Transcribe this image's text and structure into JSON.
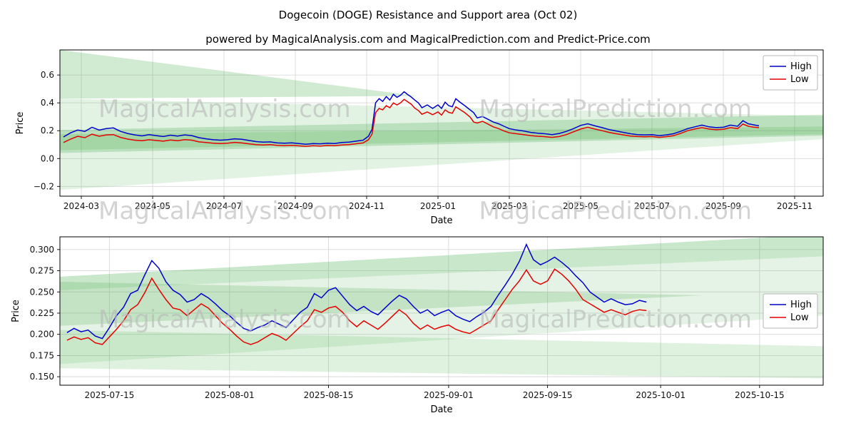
{
  "figure": {
    "title": "Dogecoin (DOGE) Resistance and Support area (Oct 02)",
    "subtitle": "powered by MagicalAnalysis.com and MagicalPrediction.com and Predict-Price.com"
  },
  "watermark": {
    "left": "MagicalAnalysis.com",
    "right": "MagicalPrediction.com"
  },
  "colors": {
    "high": "#0000cc",
    "low": "#e60000",
    "band": "#4caf50",
    "grid": "#d9d9d9"
  },
  "chart_data": [
    {
      "type": "line",
      "xlabel": "Date",
      "ylabel": "Price",
      "x_unit": "months since 2024-01 (3 = 2024-03)",
      "xlim": [
        2.4,
        23.8
      ],
      "ylim": [
        -0.27,
        0.78
      ],
      "grid": true,
      "legend": {
        "loc": "ne"
      },
      "xticks": [
        {
          "v": 3,
          "label": "2024-03"
        },
        {
          "v": 5,
          "label": "2024-05"
        },
        {
          "v": 7,
          "label": "2024-07"
        },
        {
          "v": 9,
          "label": "2024-09"
        },
        {
          "v": 11,
          "label": "2024-11"
        },
        {
          "v": 13,
          "label": "2025-01"
        },
        {
          "v": 15,
          "label": "2025-03"
        },
        {
          "v": 17,
          "label": "2025-05"
        },
        {
          "v": 19,
          "label": "2025-07"
        },
        {
          "v": 21,
          "label": "2025-09"
        },
        {
          "v": 23,
          "label": "2025-11"
        }
      ],
      "yticks": [
        {
          "v": -0.2,
          "label": "−0.2"
        },
        {
          "v": 0.0,
          "label": "0.0"
        },
        {
          "v": 0.2,
          "label": "0.2"
        },
        {
          "v": 0.4,
          "label": "0.4"
        },
        {
          "v": 0.6,
          "label": "0.6"
        }
      ],
      "x": [
        2.5,
        2.7,
        2.9,
        3.1,
        3.3,
        3.5,
        3.7,
        3.9,
        4.1,
        4.3,
        4.5,
        4.7,
        4.9,
        5.1,
        5.3,
        5.5,
        5.7,
        5.9,
        6.1,
        6.3,
        6.5,
        6.7,
        6.9,
        7.1,
        7.3,
        7.5,
        7.7,
        7.9,
        8.1,
        8.3,
        8.5,
        8.7,
        8.9,
        9.1,
        9.3,
        9.5,
        9.7,
        9.9,
        10.1,
        10.3,
        10.5,
        10.7,
        10.9,
        11.05,
        11.15,
        11.25,
        11.35,
        11.45,
        11.55,
        11.65,
        11.75,
        11.85,
        11.95,
        12.05,
        12.15,
        12.25,
        12.35,
        12.45,
        12.55,
        12.7,
        12.85,
        13.0,
        13.1,
        13.2,
        13.3,
        13.4,
        13.5,
        13.6,
        13.75,
        13.9,
        14.0,
        14.1,
        14.25,
        14.4,
        14.55,
        14.7,
        14.85,
        15.0,
        15.2,
        15.4,
        15.6,
        15.8,
        16.0,
        16.2,
        16.4,
        16.6,
        16.8,
        17.0,
        17.2,
        17.4,
        17.6,
        17.8,
        18.0,
        18.2,
        18.4,
        18.6,
        18.8,
        19.0,
        19.2,
        19.4,
        19.6,
        19.8,
        20.0,
        20.2,
        20.4,
        20.6,
        20.8,
        21.0,
        21.2,
        21.4,
        21.55,
        21.7,
        21.85,
        22.0
      ],
      "series": [
        {
          "name": "High",
          "color": "#0000cc",
          "values": [
            0.155,
            0.185,
            0.205,
            0.195,
            0.225,
            0.205,
            0.215,
            0.22,
            0.195,
            0.18,
            0.17,
            0.163,
            0.172,
            0.165,
            0.158,
            0.168,
            0.162,
            0.17,
            0.165,
            0.15,
            0.142,
            0.135,
            0.132,
            0.135,
            0.142,
            0.138,
            0.13,
            0.122,
            0.118,
            0.12,
            0.112,
            0.11,
            0.113,
            0.108,
            0.103,
            0.108,
            0.106,
            0.11,
            0.108,
            0.115,
            0.118,
            0.125,
            0.132,
            0.16,
            0.21,
            0.4,
            0.43,
            0.41,
            0.445,
            0.42,
            0.462,
            0.44,
            0.455,
            0.48,
            0.46,
            0.442,
            0.42,
            0.4,
            0.365,
            0.385,
            0.36,
            0.385,
            0.36,
            0.405,
            0.38,
            0.372,
            0.43,
            0.408,
            0.38,
            0.35,
            0.33,
            0.292,
            0.302,
            0.282,
            0.262,
            0.25,
            0.232,
            0.215,
            0.205,
            0.198,
            0.188,
            0.182,
            0.178,
            0.172,
            0.18,
            0.195,
            0.215,
            0.238,
            0.25,
            0.235,
            0.222,
            0.208,
            0.198,
            0.188,
            0.178,
            0.172,
            0.17,
            0.172,
            0.165,
            0.17,
            0.178,
            0.195,
            0.215,
            0.228,
            0.24,
            0.228,
            0.222,
            0.225,
            0.24,
            0.232,
            0.272,
            0.25,
            0.242,
            0.235
          ]
        },
        {
          "name": "Low",
          "color": "#e60000",
          "values": [
            0.115,
            0.14,
            0.16,
            0.15,
            0.175,
            0.16,
            0.17,
            0.172,
            0.152,
            0.14,
            0.132,
            0.128,
            0.135,
            0.13,
            0.125,
            0.133,
            0.128,
            0.136,
            0.132,
            0.12,
            0.115,
            0.11,
            0.108,
            0.11,
            0.116,
            0.112,
            0.106,
            0.1,
            0.097,
            0.1,
            0.094,
            0.092,
            0.095,
            0.091,
            0.088,
            0.092,
            0.09,
            0.094,
            0.092,
            0.098,
            0.1,
            0.106,
            0.112,
            0.135,
            0.175,
            0.33,
            0.36,
            0.35,
            0.38,
            0.365,
            0.4,
            0.385,
            0.4,
            0.425,
            0.408,
            0.39,
            0.362,
            0.345,
            0.318,
            0.335,
            0.315,
            0.335,
            0.312,
            0.35,
            0.332,
            0.325,
            0.372,
            0.355,
            0.33,
            0.298,
            0.262,
            0.255,
            0.268,
            0.248,
            0.228,
            0.215,
            0.198,
            0.185,
            0.178,
            0.172,
            0.165,
            0.16,
            0.157,
            0.152,
            0.158,
            0.172,
            0.192,
            0.212,
            0.225,
            0.212,
            0.2,
            0.188,
            0.178,
            0.17,
            0.162,
            0.158,
            0.156,
            0.158,
            0.152,
            0.157,
            0.164,
            0.18,
            0.2,
            0.212,
            0.222,
            0.212,
            0.207,
            0.21,
            0.222,
            0.215,
            0.248,
            0.232,
            0.226,
            0.222
          ]
        }
      ],
      "bands": [
        {
          "color": "#4caf50",
          "opacity": 0.26,
          "points": [
            [
              2.4,
              0.78
            ],
            [
              12.4,
              0.45
            ],
            [
              2.4,
              0.43
            ]
          ]
        },
        {
          "color": "#4caf50",
          "opacity": 0.16,
          "points": [
            [
              2.4,
              0.43
            ],
            [
              23.8,
              0.305
            ],
            [
              23.8,
              0.14
            ],
            [
              2.4,
              -0.225
            ]
          ]
        },
        {
          "color": "#4caf50",
          "opacity": 0.26,
          "points": [
            [
              2.4,
              0.205
            ],
            [
              23.8,
              0.315
            ],
            [
              23.8,
              0.165
            ],
            [
              2.4,
              0.04
            ]
          ]
        },
        {
          "color": "#4caf50",
          "opacity": 0.22,
          "points": [
            [
              2.4,
              0.175
            ],
            [
              23.8,
              0.23
            ],
            [
              23.8,
              0.175
            ],
            [
              2.4,
              0.06
            ]
          ]
        }
      ]
    },
    {
      "type": "line",
      "xlabel": "Date",
      "ylabel": "Price",
      "x_unit": "days since 2025-07-01 (14 = 2025-07-15)",
      "xlim": [
        7,
        115
      ],
      "ylim": [
        0.14,
        0.315
      ],
      "grid": true,
      "legend": {
        "loc": "e"
      },
      "xticks": [
        {
          "v": 14,
          "label": "2025-07-15"
        },
        {
          "v": 31,
          "label": "2025-08-01"
        },
        {
          "v": 45,
          "label": "2025-08-15"
        },
        {
          "v": 62,
          "label": "2025-09-01"
        },
        {
          "v": 76,
          "label": "2025-09-15"
        },
        {
          "v": 92,
          "label": "2025-10-01"
        },
        {
          "v": 106,
          "label": "2025-10-15"
        }
      ],
      "yticks": [
        {
          "v": 0.15,
          "label": "0.150"
        },
        {
          "v": 0.175,
          "label": "0.175"
        },
        {
          "v": 0.2,
          "label": "0.200"
        },
        {
          "v": 0.225,
          "label": "0.225"
        },
        {
          "v": 0.25,
          "label": "0.250"
        },
        {
          "v": 0.275,
          "label": "0.275"
        },
        {
          "v": 0.3,
          "label": "0.300"
        }
      ],
      "x": [
        8,
        9,
        10,
        11,
        12,
        13,
        14,
        15,
        16,
        17,
        18,
        19,
        20,
        21,
        22,
        23,
        24,
        25,
        26,
        27,
        28,
        29,
        30,
        31,
        32,
        33,
        34,
        35,
        36,
        37,
        38,
        39,
        40,
        41,
        42,
        43,
        44,
        45,
        46,
        47,
        48,
        49,
        50,
        51,
        52,
        53,
        54,
        55,
        56,
        57,
        58,
        59,
        60,
        61,
        62,
        63,
        64,
        65,
        66,
        67,
        68,
        69,
        70,
        71,
        72,
        73,
        74,
        75,
        76,
        77,
        78,
        79,
        80,
        81,
        82,
        83,
        84,
        85,
        86,
        87,
        88,
        89,
        90
      ],
      "series": [
        {
          "name": "High",
          "color": "#0000cc",
          "values": [
            0.202,
            0.207,
            0.203,
            0.205,
            0.198,
            0.195,
            0.208,
            0.222,
            0.232,
            0.248,
            0.252,
            0.27,
            0.287,
            0.278,
            0.262,
            0.252,
            0.247,
            0.238,
            0.241,
            0.248,
            0.243,
            0.236,
            0.228,
            0.222,
            0.214,
            0.207,
            0.204,
            0.208,
            0.211,
            0.216,
            0.212,
            0.208,
            0.217,
            0.226,
            0.232,
            0.248,
            0.243,
            0.252,
            0.255,
            0.245,
            0.235,
            0.228,
            0.233,
            0.227,
            0.223,
            0.231,
            0.239,
            0.246,
            0.242,
            0.233,
            0.225,
            0.229,
            0.222,
            0.226,
            0.229,
            0.222,
            0.218,
            0.215,
            0.221,
            0.226,
            0.233,
            0.246,
            0.258,
            0.271,
            0.286,
            0.306,
            0.288,
            0.282,
            0.286,
            0.291,
            0.285,
            0.278,
            0.269,
            0.261,
            0.25,
            0.244,
            0.238,
            0.242,
            0.238,
            0.235,
            0.236,
            0.24,
            0.238
          ]
        },
        {
          "name": "Low",
          "color": "#e60000",
          "values": [
            0.193,
            0.197,
            0.194,
            0.196,
            0.19,
            0.188,
            0.197,
            0.206,
            0.216,
            0.229,
            0.235,
            0.249,
            0.266,
            0.253,
            0.241,
            0.231,
            0.229,
            0.222,
            0.229,
            0.236,
            0.231,
            0.222,
            0.213,
            0.206,
            0.198,
            0.191,
            0.188,
            0.191,
            0.196,
            0.201,
            0.198,
            0.193,
            0.201,
            0.209,
            0.216,
            0.229,
            0.226,
            0.231,
            0.233,
            0.226,
            0.216,
            0.209,
            0.216,
            0.211,
            0.206,
            0.213,
            0.221,
            0.229,
            0.223,
            0.213,
            0.206,
            0.211,
            0.206,
            0.209,
            0.211,
            0.206,
            0.203,
            0.201,
            0.206,
            0.211,
            0.216,
            0.229,
            0.241,
            0.253,
            0.263,
            0.276,
            0.263,
            0.259,
            0.263,
            0.277,
            0.271,
            0.263,
            0.253,
            0.241,
            0.236,
            0.231,
            0.226,
            0.229,
            0.226,
            0.223,
            0.227,
            0.229,
            0.228
          ]
        }
      ],
      "bands": [
        {
          "color": "#4caf50",
          "opacity": 0.3,
          "points": [
            [
              7,
              0.268
            ],
            [
              115,
              0.318
            ],
            [
              115,
              0.292
            ],
            [
              7,
              0.252
            ]
          ]
        },
        {
          "color": "#4caf50",
          "opacity": 0.15,
          "points": [
            [
              7,
              0.252
            ],
            [
              115,
              0.292
            ],
            [
              115,
              0.222
            ],
            [
              7,
              0.165
            ]
          ]
        },
        {
          "color": "#4caf50",
          "opacity": 0.22,
          "points": [
            [
              7,
              0.262
            ],
            [
              98,
              0.246
            ],
            [
              7,
              0.21
            ]
          ]
        },
        {
          "color": "#4caf50",
          "opacity": 0.18,
          "points": [
            [
              7,
              0.205
            ],
            [
              115,
              0.186
            ],
            [
              115,
              0.148
            ],
            [
              7,
              0.16
            ]
          ]
        }
      ]
    }
  ]
}
